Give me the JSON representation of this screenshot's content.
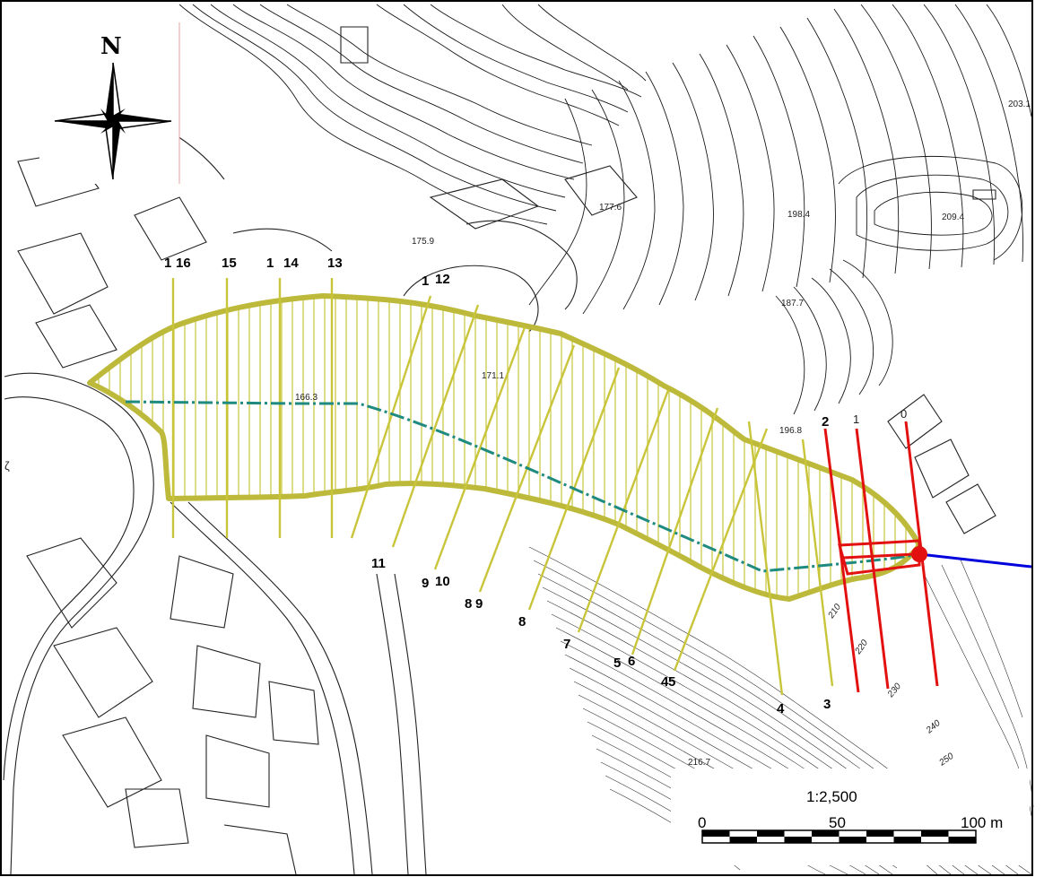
{
  "map": {
    "north_label": "N",
    "scale": {
      "ratio": "1:2,500",
      "ticks": [
        "0",
        "50",
        "100 m"
      ]
    },
    "spot_heights": [
      "177.6",
      "175.9",
      "198.4",
      "209.4",
      "187.7",
      "171.1",
      "166.3",
      "196.8",
      "216.7",
      "203.1"
    ],
    "contour_labels": [
      "210",
      "220",
      "230",
      "240",
      "250"
    ],
    "sections_yellow": [
      "16",
      "15",
      "14",
      "13",
      "12",
      "11",
      "10",
      "9",
      "8",
      "7",
      "6",
      "5",
      "4",
      "3"
    ],
    "sections_red": [
      "2",
      "1",
      "0"
    ],
    "stray_labels": [
      "1",
      "1",
      "1",
      "9",
      "8",
      "5",
      "4"
    ],
    "edge_glyph": "ζ",
    "colors": {
      "debris_area": "#bdb93a",
      "section_yellow": "#c8c53a",
      "section_red": "#e31010",
      "thalweg": "#1e8a80",
      "flow_line": "#0000dd"
    }
  }
}
